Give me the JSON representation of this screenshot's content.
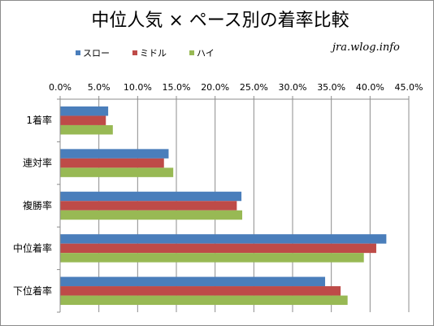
{
  "chart_data": {
    "type": "bar",
    "orientation": "horizontal",
    "title": "中位人気 × ペース別の着率比較",
    "watermark": "jra.wlog.info",
    "categories": [
      "1着率",
      "連対率",
      "複勝率",
      "中位着率",
      "下位着率"
    ],
    "series": [
      {
        "name": "スロー",
        "color": "#4a7ebb",
        "values": [
          6.2,
          14.0,
          23.4,
          42.1,
          34.2
        ]
      },
      {
        "name": "ミドル",
        "color": "#be4b48",
        "values": [
          5.9,
          13.4,
          22.8,
          40.8,
          36.2
        ]
      },
      {
        "name": "ハイ",
        "color": "#98b954",
        "values": [
          6.8,
          14.6,
          23.5,
          39.2,
          37.1
        ]
      }
    ],
    "xlim": [
      0,
      45
    ],
    "xticks": [
      0,
      5,
      10,
      15,
      20,
      25,
      30,
      35,
      40,
      45
    ],
    "tick_format": "percent_1dp",
    "grid": true,
    "legend_position": "top-left"
  }
}
